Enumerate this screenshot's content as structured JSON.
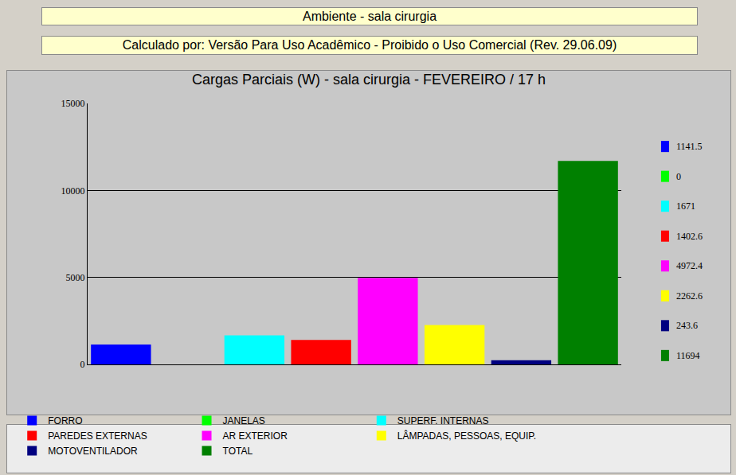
{
  "header": {
    "ambiente": "Ambiente - sala cirurgia",
    "calculado_por": "Calculado por: Versão Para Uso Acadêmico - Proibido o Uso Comercial (Rev. 29.06.09)"
  },
  "chart_data": {
    "type": "bar",
    "title": "Cargas Parciais (W) - sala cirurgia - FEVEREIRO / 17 h",
    "categories": [
      "FORRO",
      "JANELAS",
      "SUPERF. INTERNAS",
      "PAREDES EXTERNAS",
      "AR EXTERIOR",
      "LÂMPADAS, PESSOAS, EQUIP.",
      "MOTOVENTILADOR",
      "TOTAL"
    ],
    "values": [
      1141.5,
      0,
      1671,
      1402.6,
      4972.4,
      2262.6,
      243.6,
      11694
    ],
    "colors": [
      "#0000ff",
      "#00ff00",
      "#00ffff",
      "#ff0000",
      "#ff00ff",
      "#ffff00",
      "#000080",
      "#008000"
    ],
    "ylim": [
      0,
      15000
    ],
    "yticks": [
      0,
      5000,
      10000,
      15000
    ],
    "grid": true,
    "legend": "bottom",
    "tick_labels": "y"
  }
}
